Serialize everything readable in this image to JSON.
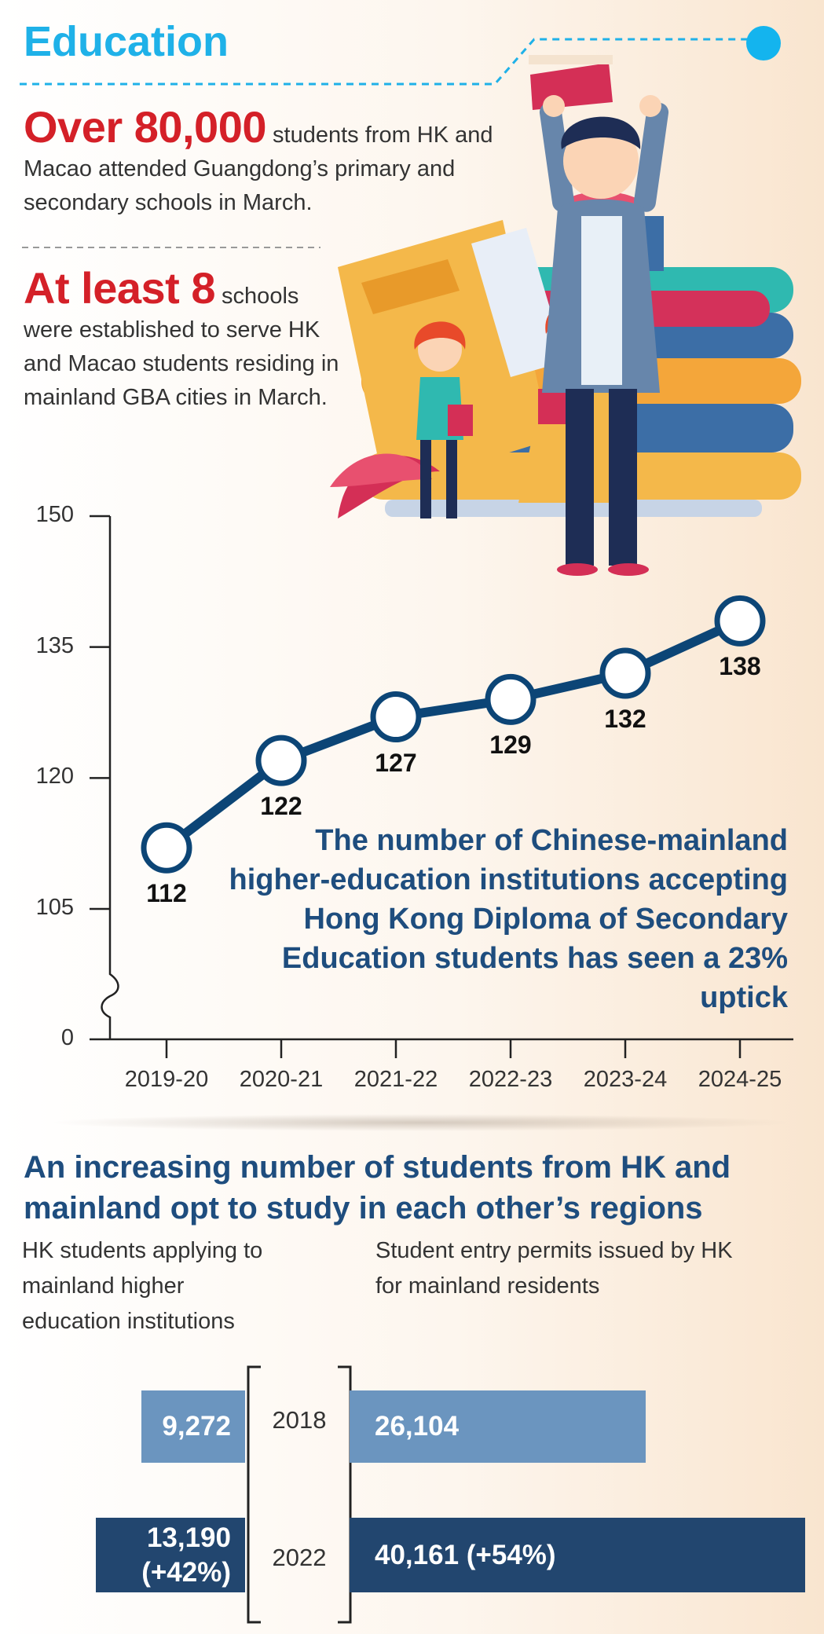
{
  "header": {
    "title": "Education"
  },
  "stats": [
    {
      "highlight": "Over 80,000",
      "text": " students from HK and Macao attended Guangdong’s primary and secondary schools in March."
    },
    {
      "highlight": "At least 8",
      "text": " schools were established to serve HK and Macao students residing in mainland GBA cities in March."
    }
  ],
  "chart_data": [
    {
      "type": "line",
      "categories": [
        "2019-20",
        "2020-21",
        "2021-22",
        "2022-23",
        "2023-24",
        "2024-25"
      ],
      "values": [
        112,
        122,
        127,
        129,
        132,
        138
      ],
      "data_labels": [
        "112",
        "122",
        "127",
        "129",
        "132",
        "138"
      ],
      "yticks": [
        "150",
        "135",
        "120",
        "105",
        "0"
      ],
      "ylim": [
        0,
        150
      ],
      "axis_break": true,
      "annotation": "The number of Chinese-mainland higher-education institutions accepting Hong Kong Diploma of Secondary Education students has seen a 23% uptick",
      "colors": {
        "line": "#0c4576",
        "marker_fill": "#ffffff"
      }
    },
    {
      "type": "bar",
      "title": "An increasing number of students from HK and mainland opt to study in each other’s regions",
      "categories": [
        "2018",
        "2022"
      ],
      "series": [
        {
          "name": "HK students applying to mainland higher education institutions",
          "values": [
            9272,
            13190
          ],
          "labels": [
            "9,272",
            "13,190 (+42%)"
          ]
        },
        {
          "name": "Student entry permits issued by HK for mainland residents",
          "values": [
            26104,
            40161
          ],
          "labels": [
            "26,104",
            "40,161 (+54%)"
          ]
        }
      ],
      "colors": {
        "2018": "#6b95bf",
        "2022": "#22466f"
      }
    }
  ]
}
